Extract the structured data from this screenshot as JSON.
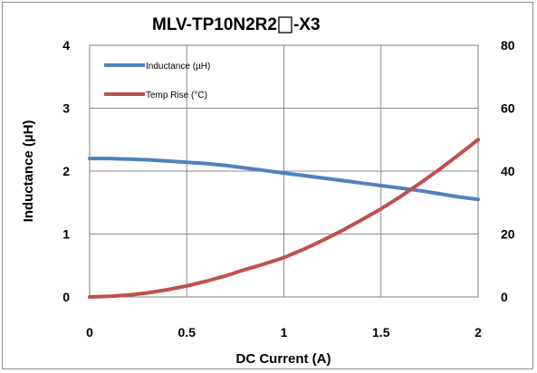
{
  "chart_data": {
    "type": "line",
    "title": "MLV-TP10N2R2",
    "title_suffix": "-X3",
    "xlabel": "DC Current (A)",
    "ylabel": "Inductance (µH)",
    "y2label": "",
    "xlim": [
      0,
      2
    ],
    "ylim": [
      0,
      4
    ],
    "y2lim": [
      0,
      80
    ],
    "x_ticks": [
      "0",
      "0.5",
      "1",
      "1.5",
      "2"
    ],
    "y_ticks": [
      "0",
      "1",
      "2",
      "3",
      "4"
    ],
    "y2_ticks": [
      "0",
      "20",
      "40",
      "60",
      "80"
    ],
    "grid": true,
    "legend_position": "top-left",
    "series": [
      {
        "name": "Inductance (µH)",
        "axis": "left",
        "color": "#4f81bd",
        "x": [
          0,
          0.1,
          0.2,
          0.3,
          0.4,
          0.5,
          0.6,
          0.7,
          0.8,
          0.9,
          1.0,
          1.1,
          1.2,
          1.3,
          1.4,
          1.5,
          1.6,
          1.7,
          1.8,
          1.9,
          2.0
        ],
        "y": [
          2.2,
          2.2,
          2.19,
          2.18,
          2.16,
          2.14,
          2.12,
          2.09,
          2.05,
          2.01,
          1.97,
          1.93,
          1.89,
          1.85,
          1.81,
          1.77,
          1.73,
          1.69,
          1.64,
          1.59,
          1.55
        ]
      },
      {
        "name": "Temp Rise (°C)",
        "axis": "right",
        "color": "#c0504d",
        "x": [
          0,
          0.1,
          0.2,
          0.3,
          0.4,
          0.5,
          0.6,
          0.7,
          0.8,
          0.9,
          1.0,
          1.1,
          1.2,
          1.3,
          1.4,
          1.5,
          1.6,
          1.7,
          1.8,
          1.9,
          2.0
        ],
        "y": [
          0,
          0.2,
          0.6,
          1.3,
          2.3,
          3.5,
          5.0,
          6.7,
          8.7,
          10.5,
          12.5,
          15.1,
          18.0,
          21.1,
          24.5,
          28.0,
          31.9,
          36.1,
          40.5,
          45.2,
          50.0
        ]
      }
    ]
  }
}
